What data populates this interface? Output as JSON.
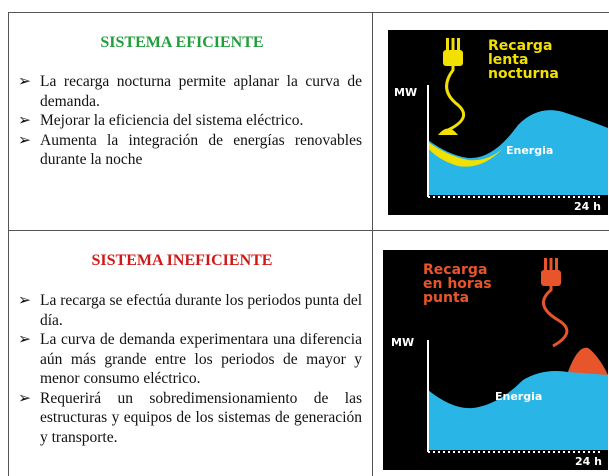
{
  "rows": [
    {
      "title": "SISTEMA EFICIENTE",
      "bullets": [
        "La recarga nocturna permite aplanar la curva de demanda.",
        "Mejorar la eficiencia del sistema eléctrico.",
        "Aumenta la integración de energías renovables durante la noche"
      ],
      "figure": {
        "caption_lines": [
          "Recarga",
          "lenta",
          "nocturna"
        ],
        "y_axis": "MW",
        "area_label": "Energia",
        "x_end": "24 h"
      }
    },
    {
      "title": "SISTEMA INEFICIENTE",
      "bullets": [
        "La recarga se efectúa durante los periodos punta del día.",
        "La curva de demanda experimentara una diferencia aún más grande entre los periodos de mayor y menor consumo eléctrico.",
        "Requerirá un sobredimensionamiento de las estructuras y equipos de los sistemas de generación y transporte."
      ],
      "figure": {
        "caption_lines": [
          "Recarga",
          "en horas",
          "punta"
        ],
        "y_axis": "MW",
        "area_label": "Energia",
        "x_end": "24 h"
      }
    }
  ]
}
